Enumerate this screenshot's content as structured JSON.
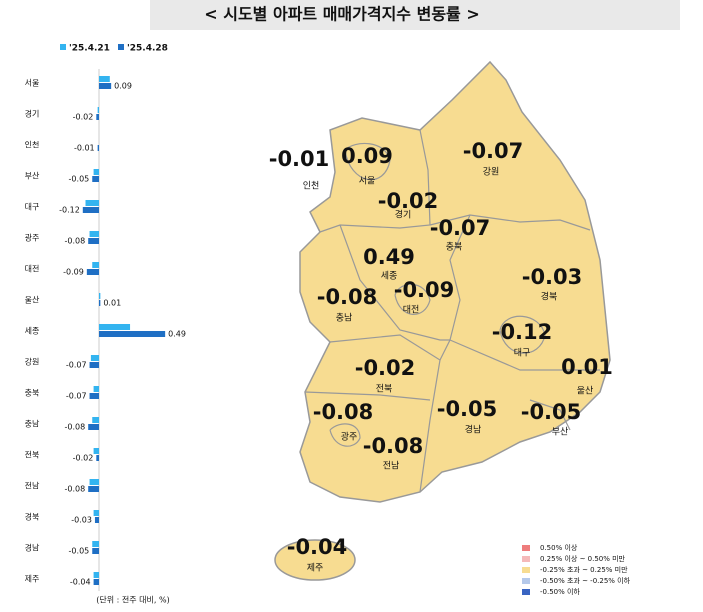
{
  "chart_data": {
    "type": "bar",
    "title": "< 시도별 아파트 매매가격지수 변동률 >",
    "categories": [
      "서울",
      "경기",
      "인천",
      "부산",
      "대구",
      "광주",
      "대전",
      "울산",
      "세종",
      "강원",
      "충북",
      "충남",
      "전북",
      "전남",
      "경북",
      "경남",
      "제주"
    ],
    "series": [
      {
        "name": "'25.4.21",
        "color": "#33b4f0",
        "values": [
          0.08,
          -0.01,
          0,
          -0.04,
          -0.1,
          -0.07,
          -0.05,
          0.01,
          0.23,
          -0.06,
          -0.04,
          -0.05,
          -0.04,
          -0.07,
          -0.04,
          -0.05,
          -0.04
        ]
      },
      {
        "name": "'25.4.28",
        "color": "#1f6fc4",
        "values": [
          0.09,
          -0.02,
          -0.01,
          -0.05,
          -0.12,
          -0.08,
          -0.09,
          0.01,
          0.49,
          -0.07,
          -0.07,
          -0.08,
          -0.02,
          -0.08,
          -0.03,
          -0.05,
          -0.04
        ]
      }
    ],
    "note": "(단위 : 전주 대비, %)"
  },
  "map_legend": [
    {
      "label": "0.50% 이상",
      "color": "#ee7c7c"
    },
    {
      "label": "0.25% 이상 ~ 0.50% 미만",
      "color": "#f5b9b9"
    },
    {
      "label": "-0.25% 초과 ~ 0.25% 미만",
      "color": "#f7dc91"
    },
    {
      "label": "-0.50% 초과 ~ -0.25% 이하",
      "color": "#b5c9ea"
    },
    {
      "label": "-0.50% 이하",
      "color": "#3964c2"
    }
  ]
}
